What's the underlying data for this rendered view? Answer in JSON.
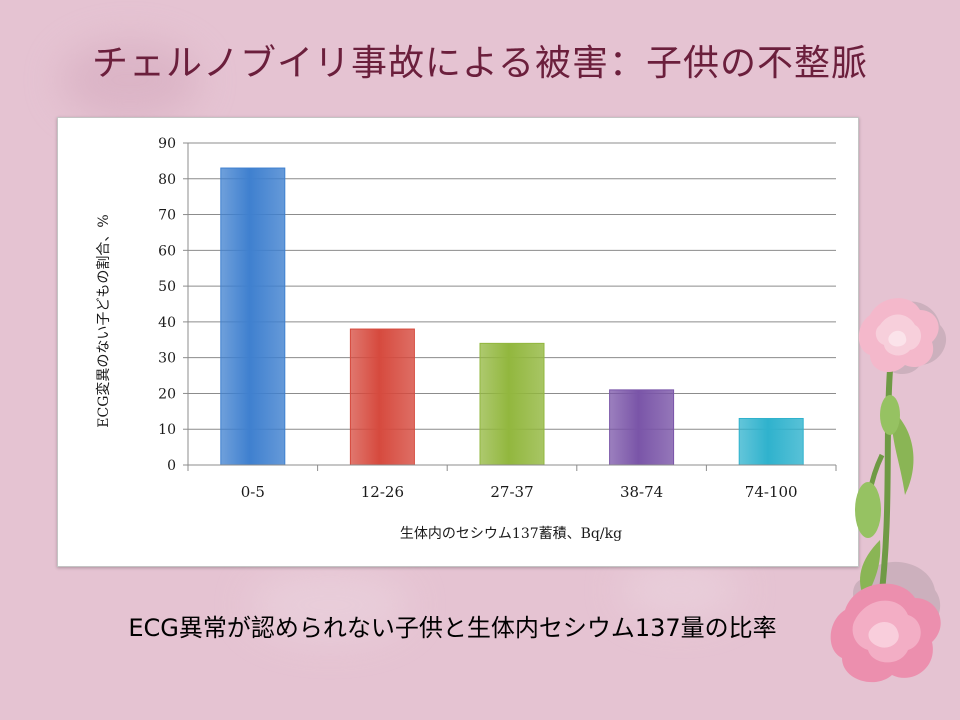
{
  "slide": {
    "title": "チェルノブイリ事故による被害：子供の不整脈",
    "caption": "ECG異常が認められない子供と生体内セシウム137量の比率"
  },
  "chart_data": {
    "type": "bar",
    "categories": [
      "0-5",
      "12-26",
      "27-37",
      "38-74",
      "74-100"
    ],
    "values": [
      83,
      38,
      34,
      21,
      13
    ],
    "colors": [
      "#3f80cf",
      "#d64a3e",
      "#92b73e",
      "#7a55a8",
      "#2fb2cd"
    ],
    "xlabel": "生体内のセシウム137蓄積、Bq/kg",
    "ylabel": "ECG変異のない子どもの割合、%",
    "ylim": [
      0,
      90
    ],
    "yticks": [
      0,
      10,
      20,
      30,
      40,
      50,
      60,
      70,
      80,
      90
    ],
    "grid": true
  }
}
